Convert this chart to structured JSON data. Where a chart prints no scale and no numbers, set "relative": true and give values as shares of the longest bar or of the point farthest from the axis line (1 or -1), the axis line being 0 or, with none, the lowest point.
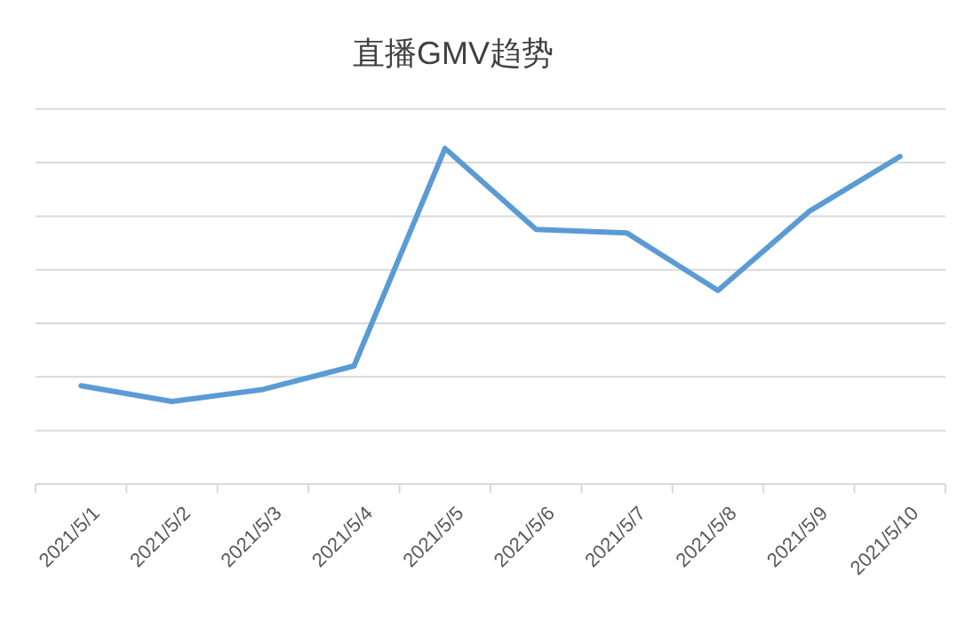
{
  "chart_data": {
    "type": "line",
    "title": "直播GMV趋势",
    "relative": true,
    "grid": "y",
    "categories": [
      "2021/5/1",
      "2021/5/2",
      "2021/5/3",
      "2021/5/4",
      "2021/5/5",
      "2021/5/6",
      "2021/5/7",
      "2021/5/8",
      "2021/5/9",
      "2021/5/10"
    ],
    "series": [
      {
        "color": "#5b9bd5",
        "values": [
          0.293,
          0.246,
          0.282,
          0.352,
          1,
          0.759,
          0.748,
          0.577,
          0.812,
          0.976
        ]
      }
    ],
    "marker": "none",
    "line_style": "solid"
  }
}
